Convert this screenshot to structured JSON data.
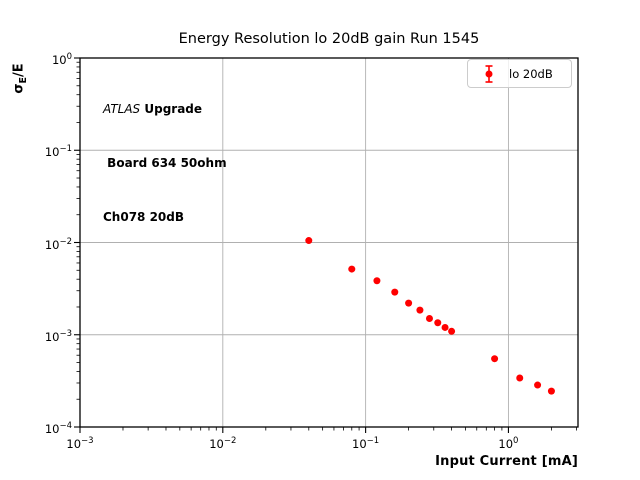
{
  "chart_data": {
    "type": "scatter",
    "title": "Energy Resolution lo 20dB gain Run 1545",
    "xlabel": "Input Current [mA]",
    "ylabel": "σ_E/E",
    "xscale": "log",
    "yscale": "log",
    "xlim": [
      0.001,
      3.07
    ],
    "ylim": [
      0.0001,
      1.0
    ],
    "grid": true,
    "legend_position": "upper right",
    "x_tick_exponents": [
      -3,
      -2,
      -1,
      0
    ],
    "y_tick_exponents": [
      0,
      -1,
      -2,
      -3,
      -4
    ],
    "series": [
      {
        "name": "lo 20dB",
        "marker": "filled-circle-with-errorbars",
        "color": "#ff0000",
        "x": [
          0.04,
          0.08,
          0.12,
          0.16,
          0.2,
          0.24,
          0.28,
          0.32,
          0.36,
          0.4,
          0.8,
          1.2,
          1.6,
          2.0
        ],
        "y": [
          0.0105,
          0.00515,
          0.00385,
          0.0029,
          0.0022,
          0.00185,
          0.0015,
          0.00135,
          0.0012,
          0.00109,
          0.00055,
          0.00034,
          0.000285,
          0.000245
        ]
      }
    ],
    "annotation": {
      "line1_italic": "ATLAS",
      "line1_bold": " Upgrade",
      "line2": " Board 634 50ohm",
      "line3": "Ch078 20dB"
    },
    "ylabel_parts": {
      "base": "σ",
      "sub": "E",
      "rest": "/E"
    },
    "style": {
      "marker_color": "#ff0000",
      "grid_color": "#b0b0b0",
      "spine_color": "#000000",
      "text_color": "#000000"
    }
  }
}
